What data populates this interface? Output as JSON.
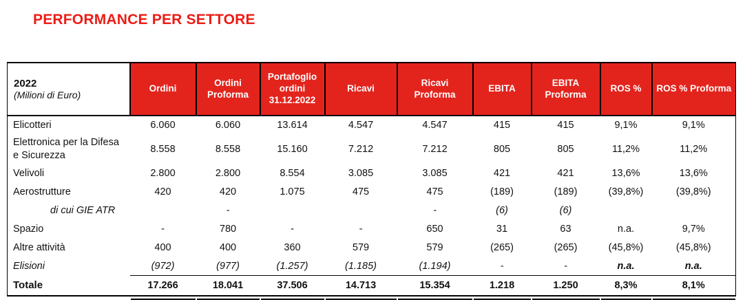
{
  "title": "PERFORMANCE PER SETTORE",
  "colors": {
    "title_red": "#ED1C16",
    "header_red": "#E3241D",
    "border_black": "#000000"
  },
  "table": {
    "corner": {
      "year": "2022",
      "unit": "(Milioni di Euro)"
    },
    "columns": [
      "Ordini",
      "Ordini Proforma",
      "Portafoglio ordini 31.12.2022",
      "Ricavi",
      "Ricavi Proforma",
      "EBITA",
      "EBITA Proforma",
      "ROS %",
      "ROS % Proforma"
    ],
    "rows": [
      {
        "label": "Elicotteri",
        "style": "normal",
        "values": [
          "6.060",
          "6.060",
          "13.614",
          "4.547",
          "4.547",
          "415",
          "415",
          "9,1%",
          "9,1%"
        ]
      },
      {
        "label": "Elettronica per la Difesa e Sicurezza",
        "style": "normal",
        "values": [
          "8.558",
          "8.558",
          "15.160",
          "7.212",
          "7.212",
          "805",
          "805",
          "11,2%",
          "11,2%"
        ]
      },
      {
        "label": "Velivoli",
        "style": "normal",
        "values": [
          "2.800",
          "2.800",
          "8.554",
          "3.085",
          "3.085",
          "421",
          "421",
          "13,6%",
          "13,6%"
        ]
      },
      {
        "label": "Aerostrutture",
        "style": "normal",
        "values": [
          "420",
          "420",
          "1.075",
          "475",
          "475",
          "(189)",
          "(189)",
          "(39,8%)",
          "(39,8%)"
        ]
      },
      {
        "label": "di cui GIE ATR",
        "style": "indent-italic",
        "values": [
          "",
          "-",
          "",
          "",
          "-",
          "(6)",
          "(6)",
          "",
          ""
        ]
      },
      {
        "label": "Spazio",
        "style": "normal",
        "values": [
          "-",
          "780",
          "-",
          "-",
          "650",
          "31",
          "63",
          "n.a.",
          "9,7%"
        ]
      },
      {
        "label": "Altre attività",
        "style": "normal",
        "values": [
          "400",
          "400",
          "360",
          "579",
          "579",
          "(265)",
          "(265)",
          "(45,8%)",
          "(45,8%)"
        ]
      },
      {
        "label": "Elisioni",
        "style": "italic",
        "values": [
          "(972)",
          "(977)",
          "(1.257)",
          "(1.185)",
          "(1.194)",
          "-",
          "-",
          "n.a.",
          "n.a."
        ]
      }
    ],
    "total": {
      "label": "Totale",
      "values": [
        "17.266",
        "18.041",
        "37.506",
        "14.713",
        "15.354",
        "1.218",
        "1.250",
        "8,3%",
        "8,1%"
      ]
    }
  }
}
